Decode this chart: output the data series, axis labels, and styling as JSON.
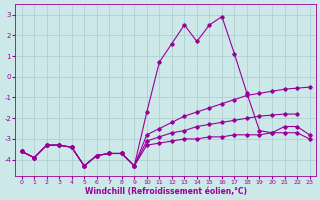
{
  "title": "",
  "xlabel": "Windchill (Refroidissement éolien,°C)",
  "background_color": "#cce8e8",
  "line_color": "#990099",
  "grid_color": "#aacccc",
  "x_values": [
    0,
    1,
    2,
    3,
    4,
    5,
    6,
    7,
    8,
    9,
    10,
    11,
    12,
    13,
    14,
    15,
    16,
    17,
    18,
    19,
    20,
    21,
    22,
    23
  ],
  "series1": [
    -3.6,
    -3.9,
    -3.3,
    -3.3,
    -3.4,
    -4.3,
    -3.8,
    -3.7,
    -3.7,
    -4.3,
    -1.7,
    0.7,
    1.6,
    2.5,
    1.7,
    2.5,
    2.9,
    1.1,
    -0.8,
    -2.6,
    -2.7,
    -2.4,
    -2.4,
    -2.8
  ],
  "series2": [
    -3.6,
    -3.9,
    -3.3,
    -3.3,
    -3.4,
    -4.3,
    -3.8,
    -3.7,
    -3.7,
    -4.3,
    -2.8,
    -2.5,
    -2.2,
    -1.9,
    -1.7,
    -1.5,
    -1.3,
    -1.1,
    -0.9,
    -0.8,
    -0.7,
    -0.6,
    -0.55,
    -0.5
  ],
  "series3": [
    -3.6,
    -3.9,
    -3.3,
    -3.3,
    -3.4,
    -4.3,
    -3.8,
    -3.7,
    -3.7,
    -4.3,
    -3.1,
    -2.9,
    -2.7,
    -2.6,
    -2.4,
    -2.3,
    -2.2,
    -2.1,
    -2.0,
    -1.9,
    -1.85,
    -1.8,
    -1.8,
    null
  ],
  "series4": [
    -3.6,
    -3.9,
    -3.3,
    -3.3,
    -3.4,
    -4.3,
    -3.8,
    -3.7,
    -3.7,
    -4.3,
    -3.3,
    -3.2,
    -3.1,
    -3.0,
    -3.0,
    -2.9,
    -2.9,
    -2.8,
    -2.8,
    -2.8,
    -2.7,
    -2.7,
    -2.7,
    -3.0
  ],
  "ylim": [
    -4.8,
    3.5
  ],
  "xlim": [
    -0.5,
    23.5
  ],
  "yticks": [
    -4,
    -3,
    -2,
    -1,
    0,
    1,
    2,
    3
  ],
  "xticks": [
    0,
    1,
    2,
    3,
    4,
    5,
    6,
    7,
    8,
    9,
    10,
    11,
    12,
    13,
    14,
    15,
    16,
    17,
    18,
    19,
    20,
    21,
    22,
    23
  ]
}
